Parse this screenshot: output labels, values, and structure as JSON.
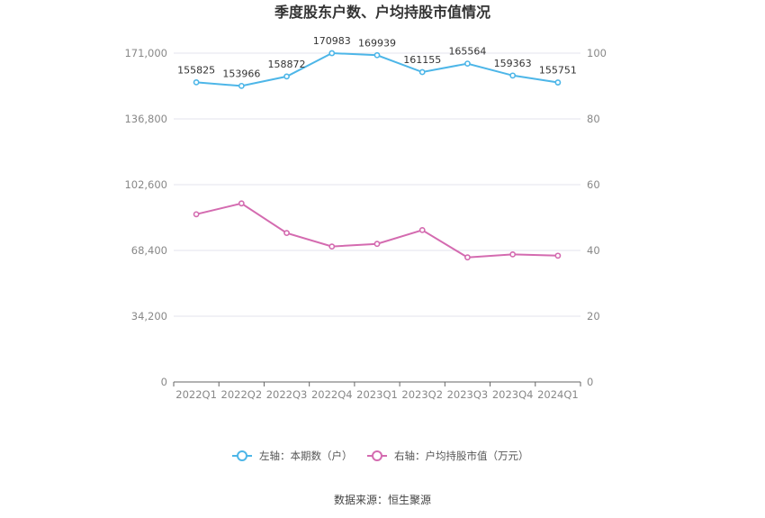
{
  "chart_data": {
    "type": "line",
    "title": "季度股东户数、户均持股市值情况",
    "categories": [
      "2022Q1",
      "2022Q2",
      "2022Q3",
      "2022Q4",
      "2023Q1",
      "2023Q2",
      "2023Q3",
      "2023Q4",
      "2024Q1"
    ],
    "series": [
      {
        "name": "左轴：本期数（户）",
        "axis": "left",
        "color": "#4db6e8",
        "values": [
          155825,
          153966,
          158872,
          170983,
          169939,
          161155,
          165564,
          159363,
          155751
        ],
        "data_labels": [
          "155825",
          "153966",
          "158872",
          "170983",
          "169939",
          "161155",
          "165564",
          "159363",
          "155751"
        ]
      },
      {
        "name": "右轴：户均持股市值（万元）",
        "axis": "right",
        "color": "#d46bb0",
        "values": [
          51.0,
          54.3,
          45.3,
          41.2,
          42.0,
          46.2,
          37.9,
          38.8,
          38.4
        ]
      }
    ],
    "left_axis": {
      "ylim": [
        0,
        171000
      ],
      "ticks": [
        0,
        34200,
        68400,
        102600,
        136800,
        171000
      ],
      "tick_labels": [
        "0",
        "34,200",
        "68,400",
        "102,600",
        "136,800",
        "171,000"
      ]
    },
    "right_axis": {
      "ylim": [
        0,
        100
      ],
      "ticks": [
        0,
        20,
        40,
        60,
        80,
        100
      ],
      "tick_labels": [
        "0",
        "20",
        "40",
        "60",
        "80",
        "100"
      ]
    },
    "grid": true,
    "legend_position": "bottom"
  },
  "source_text": "数据来源：恒生聚源"
}
